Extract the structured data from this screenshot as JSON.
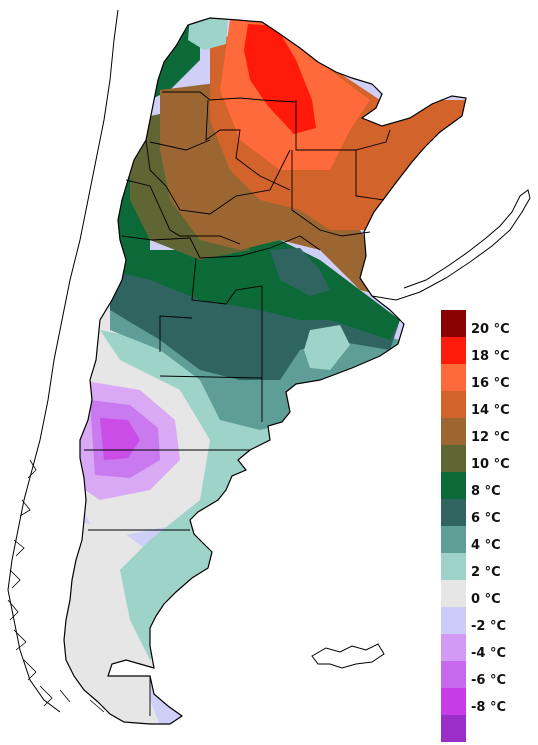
{
  "map": {
    "region": "Argentina",
    "colors": {
      "land_outline": "#000000",
      "neighbor_outline": "#000000",
      "background": "#ffffff"
    }
  },
  "legend": {
    "items": [
      {
        "label": "20 °C",
        "color": "#8b0000"
      },
      {
        "label": "18 °C",
        "color": "#ff1a0a"
      },
      {
        "label": "16 °C",
        "color": "#ff6a3a"
      },
      {
        "label": "14 °C",
        "color": "#d2632a"
      },
      {
        "label": "12 °C",
        "color": "#9b6631"
      },
      {
        "label": "10 °C",
        "color": "#5f6633"
      },
      {
        "label": "8 °C",
        "color": "#0b6a37"
      },
      {
        "label": "6 °C",
        "color": "#2f6461"
      },
      {
        "label": "4 °C",
        "color": "#5f9d97"
      },
      {
        "label": "2 °C",
        "color": "#9ed3ca"
      },
      {
        "label": "0 °C",
        "color": "#e6e6e6"
      },
      {
        "label": "-2 °C",
        "color": "#ccccf8"
      },
      {
        "label": "-4 °C",
        "color": "#d299f5"
      },
      {
        "label": "-6 °C",
        "color": "#c86aee"
      },
      {
        "label": "-8 °C",
        "color": "#c83ce8"
      },
      {
        "label": "",
        "color": "#9a2ec7"
      }
    ]
  }
}
